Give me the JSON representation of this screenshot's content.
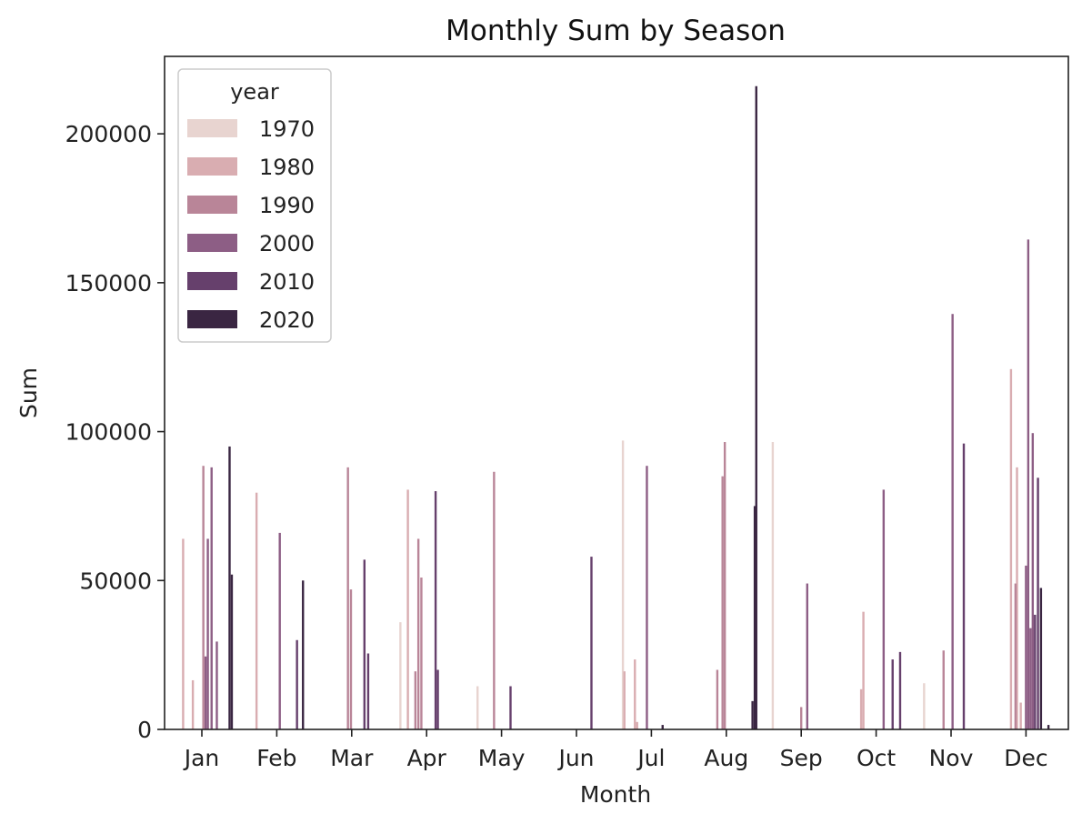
{
  "chart_data": {
    "type": "bar",
    "title": "Monthly Sum by Season",
    "xlabel": "Month",
    "ylabel": "Sum",
    "ylim": [
      0,
      226000
    ],
    "yticks": [
      0,
      50000,
      100000,
      150000,
      200000
    ],
    "categories": [
      "Jan",
      "Feb",
      "Mar",
      "Apr",
      "May",
      "Jun",
      "Jul",
      "Aug",
      "Sep",
      "Oct",
      "Nov",
      "Dec"
    ],
    "legend": {
      "title": "year",
      "placement": "upper-left"
    },
    "grid": false,
    "series": [
      {
        "name": "1970",
        "color": "#e8d4d0",
        "bars": [
          {
            "month": "Apr",
            "offset": -0.35,
            "value": 36000
          },
          {
            "month": "May",
            "offset": -0.32,
            "value": 14500
          },
          {
            "month": "Jul",
            "offset": -0.38,
            "value": 97000
          },
          {
            "month": "Sep",
            "offset": -0.38,
            "value": 96500
          },
          {
            "month": "Nov",
            "offset": -0.36,
            "value": 15500
          }
        ]
      },
      {
        "name": "1980",
        "color": "#d9adb1",
        "bars": [
          {
            "month": "Jan",
            "offset": -0.25,
            "value": 64000
          },
          {
            "month": "Jan",
            "offset": -0.12,
            "value": 16500
          },
          {
            "month": "Feb",
            "offset": -0.27,
            "value": 79500
          },
          {
            "month": "Apr",
            "offset": -0.25,
            "value": 80500
          },
          {
            "month": "Jul",
            "offset": -0.36,
            "value": 19500
          },
          {
            "month": "Jul",
            "offset": -0.22,
            "value": 23500
          },
          {
            "month": "Jul",
            "offset": -0.19,
            "value": 2500
          },
          {
            "month": "Oct",
            "offset": -0.2,
            "value": 13500
          },
          {
            "month": "Oct",
            "offset": -0.17,
            "value": 39500
          },
          {
            "month": "Dec",
            "offset": -0.2,
            "value": 121000
          },
          {
            "month": "Dec",
            "offset": -0.12,
            "value": 88000
          },
          {
            "month": "Dec",
            "offset": -0.07,
            "value": 9000
          }
        ]
      },
      {
        "name": "1990",
        "color": "#b98598",
        "bars": [
          {
            "month": "Jan",
            "offset": 0.02,
            "value": 88500
          },
          {
            "month": "Mar",
            "offset": -0.05,
            "value": 88000
          },
          {
            "month": "Mar",
            "offset": -0.01,
            "value": 47000
          },
          {
            "month": "Apr",
            "offset": -0.15,
            "value": 19500
          },
          {
            "month": "Apr",
            "offset": -0.11,
            "value": 64000
          },
          {
            "month": "Apr",
            "offset": -0.07,
            "value": 51000
          },
          {
            "month": "May",
            "offset": -0.1,
            "value": 86500
          },
          {
            "month": "Aug",
            "offset": -0.12,
            "value": 20000
          },
          {
            "month": "Aug",
            "offset": -0.05,
            "value": 85000
          },
          {
            "month": "Aug",
            "offset": -0.02,
            "value": 96500
          },
          {
            "month": "Sep",
            "offset": 0.0,
            "value": 7500
          },
          {
            "month": "Nov",
            "offset": -0.1,
            "value": 26500
          },
          {
            "month": "Dec",
            "offset": -0.14,
            "value": 49000
          }
        ]
      },
      {
        "name": "2000",
        "color": "#8d5e85",
        "bars": [
          {
            "month": "Jan",
            "offset": 0.05,
            "value": 24500
          },
          {
            "month": "Jan",
            "offset": 0.08,
            "value": 64000
          },
          {
            "month": "Jan",
            "offset": 0.13,
            "value": 88000
          },
          {
            "month": "Jan",
            "offset": 0.2,
            "value": 29500
          },
          {
            "month": "Feb",
            "offset": 0.04,
            "value": 66000
          },
          {
            "month": "Sep",
            "offset": 0.08,
            "value": 49000
          },
          {
            "month": "Jul",
            "offset": -0.06,
            "value": 88500
          },
          {
            "month": "Oct",
            "offset": 0.1,
            "value": 80500
          },
          {
            "month": "Nov",
            "offset": 0.02,
            "value": 139500
          },
          {
            "month": "Dec",
            "offset": 0.0,
            "value": 55000
          },
          {
            "month": "Dec",
            "offset": 0.03,
            "value": 164500
          },
          {
            "month": "Dec",
            "offset": 0.06,
            "value": 34000
          },
          {
            "month": "Dec",
            "offset": 0.09,
            "value": 99500
          }
        ]
      },
      {
        "name": "2010",
        "color": "#66406c",
        "bars": [
          {
            "month": "Feb",
            "offset": 0.27,
            "value": 30000
          },
          {
            "month": "Mar",
            "offset": 0.17,
            "value": 57000
          },
          {
            "month": "Mar",
            "offset": 0.22,
            "value": 25500
          },
          {
            "month": "Apr",
            "offset": 0.12,
            "value": 80000
          },
          {
            "month": "Apr",
            "offset": 0.15,
            "value": 20000
          },
          {
            "month": "May",
            "offset": 0.12,
            "value": 14500
          },
          {
            "month": "Jun",
            "offset": 0.2,
            "value": 58000
          },
          {
            "month": "Oct",
            "offset": 0.22,
            "value": 23500
          },
          {
            "month": "Oct",
            "offset": 0.32,
            "value": 26000
          },
          {
            "month": "Nov",
            "offset": 0.17,
            "value": 96000
          },
          {
            "month": "Dec",
            "offset": 0.12,
            "value": 38500
          },
          {
            "month": "Dec",
            "offset": 0.16,
            "value": 84500
          }
        ]
      },
      {
        "name": "2020",
        "color": "#3a2642",
        "bars": [
          {
            "month": "Jan",
            "offset": 0.37,
            "value": 95000
          },
          {
            "month": "Jan",
            "offset": 0.4,
            "value": 52000
          },
          {
            "month": "Feb",
            "offset": 0.35,
            "value": 50000
          },
          {
            "month": "Jul",
            "offset": 0.15,
            "value": 1500
          },
          {
            "month": "Aug",
            "offset": 0.35,
            "value": 9500
          },
          {
            "month": "Aug",
            "offset": 0.38,
            "value": 75000
          },
          {
            "month": "Aug",
            "offset": 0.4,
            "value": 216000
          },
          {
            "month": "Dec",
            "offset": 0.2,
            "value": 47500
          },
          {
            "month": "Dec",
            "offset": 0.3,
            "value": 1500
          }
        ]
      }
    ]
  }
}
